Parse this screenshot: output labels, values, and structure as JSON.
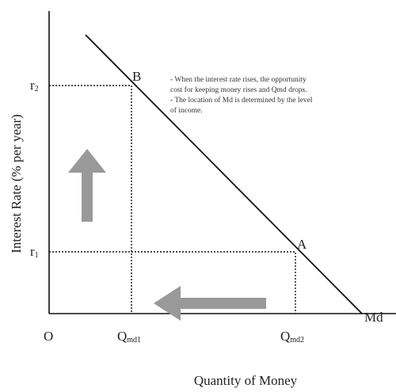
{
  "diagram": {
    "y_axis_label": "Interest Rate (% per year)",
    "x_axis_label": "Quantity of  Money",
    "origin": "O",
    "r2": {
      "base": "r",
      "sub": "2"
    },
    "r1": {
      "base": "r",
      "sub": "1"
    },
    "qmd1": {
      "base": "Q",
      "sub": "md1"
    },
    "qmd2": {
      "base": "Q",
      "sub": "md2"
    },
    "point_b": "B",
    "point_a": "A",
    "curve_label": "Md",
    "note_lines": [
      "- When the interest rate rises, the opportunity",
      "cost for keeping money rises and Qmd drops.",
      "- The location of Md is determined by the level",
      "of income."
    ]
  }
}
